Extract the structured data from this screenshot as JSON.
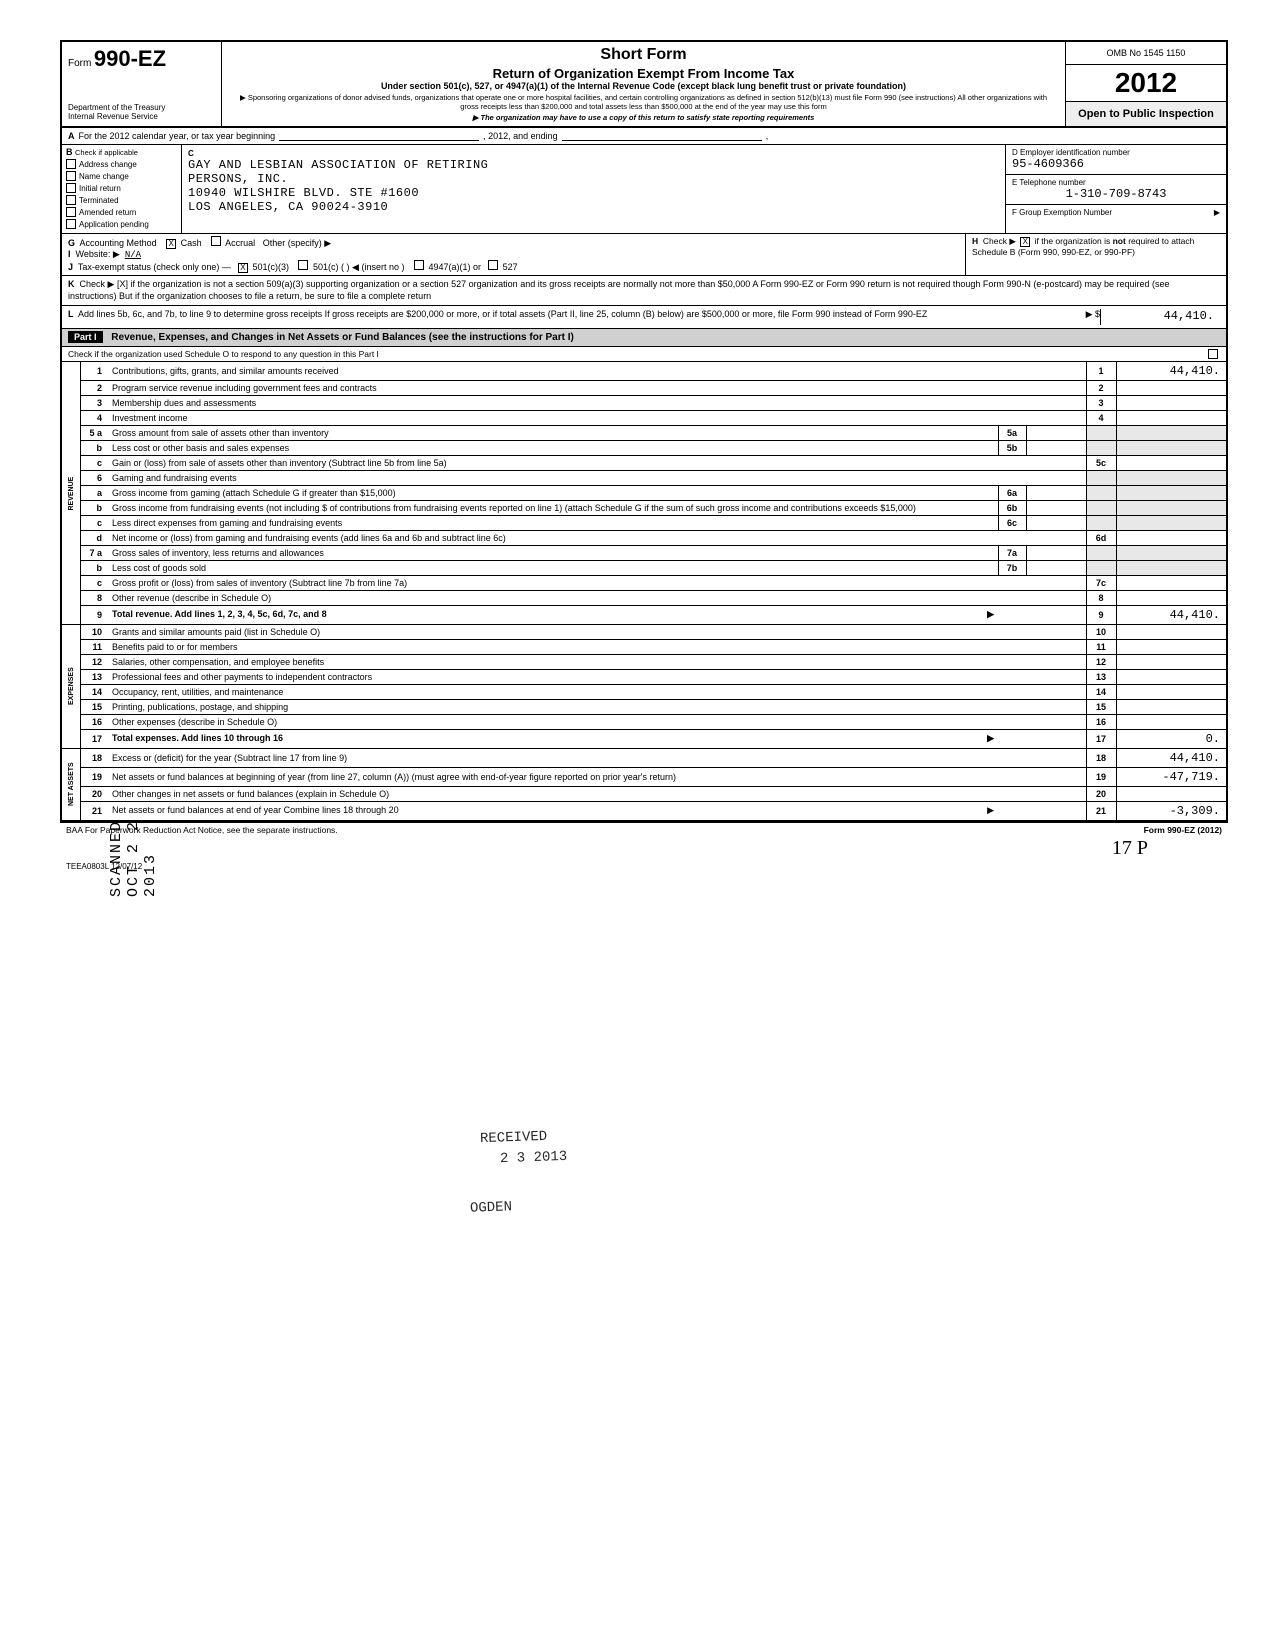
{
  "header": {
    "form_prefix": "Form",
    "form_number": "990-EZ",
    "dept1": "Department of the Treasury",
    "dept2": "Internal Revenue Service",
    "title1": "Short Form",
    "title2": "Return of Organization Exempt From Income Tax",
    "sub": "Under section 501(c), 527, or 4947(a)(1) of the Internal Revenue Code (except black lung benefit trust or private foundation)",
    "small1": "▶ Sponsoring organizations of donor advised funds, organizations that operate one or more hospital facilities, and certain controlling organizations as defined in section 512(b)(13) must file Form 990 (see instructions) All other organizations with gross receipts less than $200,000 and total assets less than $500,000 at the end of the year may use this form",
    "small2": "▶ The organization may have to use a copy of this return to satisfy state reporting requirements",
    "omb": "OMB No 1545 1150",
    "year": "2012",
    "open": "Open to Public Inspection"
  },
  "row_a": {
    "label": "A",
    "text": "For the 2012 calendar year, or tax year beginning",
    "mid": ", 2012, and ending",
    "end": ","
  },
  "block_b": {
    "label": "B",
    "check_label": "Check if applicable",
    "checks": [
      "Address change",
      "Name change",
      "Initial return",
      "Terminated",
      "Amended return",
      "Application pending"
    ],
    "label_c": "C",
    "org_line1": "GAY AND LESBIAN ASSOCIATION OF RETIRING",
    "org_line2": "PERSONS, INC.",
    "addr1": "10940 WILSHIRE BLVD. STE #1600",
    "addr2": "LOS ANGELES, CA 90024-3910",
    "d_label": "D  Employer identification number",
    "d_val": "95-4609366",
    "e_label": "E  Telephone number",
    "e_val": "1-310-709-8743",
    "f_label": "F  Group Exemption Number",
    "f_arrow": "▶"
  },
  "row_g": {
    "g_label": "G",
    "g_text": "Accounting Method",
    "g_cash": "Cash",
    "g_accrual": "Accrual",
    "g_other": "Other (specify) ▶",
    "i_label": "I",
    "i_text": "Website: ▶",
    "i_val": "N/A",
    "j_label": "J",
    "j_text": "Tax-exempt status (check only one) —",
    "j_501c3": "501(c)(3)",
    "j_501c": "501(c) (",
    "j_insert": ")  ◀ (insert no )",
    "j_4947": "4947(a)(1) or",
    "j_527": "527",
    "h_label": "H",
    "h_text1": "Check ▶",
    "h_text2": "if the organization is",
    "h_not": "not",
    "h_text3": "required to attach Schedule B (Form 990, 990-EZ, or 990-PF)"
  },
  "row_k": {
    "label": "K",
    "text": "Check ▶ [X] if the organization is not a section 509(a)(3) supporting organization or a section 527 organization and its gross receipts are normally not more than $50,000  A Form 990-EZ or Form 990 return is not required though Form 990-N (e-postcard) may be required (see instructions)  But if the organization chooses to file a return, be sure to file a complete return"
  },
  "row_l": {
    "label": "L",
    "text": "Add lines 5b, 6c, and 7b, to line 9 to determine gross receipts  If gross receipts are $200,000 or more, or if total assets (Part II, line 25, column (B) below) are $500,000 or more, file Form 990 instead of Form 990-EZ",
    "arrow": "▶ $",
    "amount": "44,410."
  },
  "part1": {
    "part_label": "Part I",
    "title": "Revenue, Expenses, and Changes in Net Assets or Fund Balances (see the instructions for Part I)",
    "sub": "Check if the organization used Schedule O to respond to any question in this Part I"
  },
  "side_labels": {
    "revenue": "REVENUE",
    "expenses": "EXPENSES",
    "netassets": "NET ASSETS"
  },
  "lines": [
    {
      "n": "1",
      "desc": "Contributions, gifts, grants, and similar amounts received",
      "rn": "1",
      "amt": "44,410."
    },
    {
      "n": "2",
      "desc": "Program service revenue including government fees and contracts",
      "rn": "2",
      "amt": ""
    },
    {
      "n": "3",
      "desc": "Membership dues and assessments",
      "rn": "3",
      "amt": ""
    },
    {
      "n": "4",
      "desc": "Investment income",
      "rn": "4",
      "amt": ""
    },
    {
      "n": "5 a",
      "desc": "Gross amount from sale of assets other than inventory",
      "mid": "5a",
      "rn": "",
      "amt": "",
      "shade": true
    },
    {
      "n": "b",
      "desc": "Less cost or other basis and sales expenses",
      "mid": "5b",
      "rn": "",
      "amt": "",
      "shade": true
    },
    {
      "n": "c",
      "desc": "Gain or (loss) from sale of assets other than inventory (Subtract line 5b from line 5a)",
      "rn": "5c",
      "amt": ""
    },
    {
      "n": "6",
      "desc": "Gaming and fundraising events",
      "rn": "",
      "amt": "",
      "shade": true
    },
    {
      "n": "a",
      "desc": "Gross income from gaming (attach Schedule G if greater than $15,000)",
      "mid": "6a",
      "rn": "",
      "amt": "",
      "shade": true
    },
    {
      "n": "b",
      "desc": "Gross income from fundraising events (not including $                    of contributions from fundraising events reported on line 1) (attach Schedule G if the sum of such gross income and contributions exceeds $15,000)",
      "mid": "6b",
      "rn": "",
      "amt": "",
      "shade": true
    },
    {
      "n": "c",
      "desc": "Less  direct expenses from gaming and fundraising events",
      "mid": "6c",
      "rn": "",
      "amt": "",
      "shade": true
    },
    {
      "n": "d",
      "desc": "Net income or (loss) from gaming and fundraising events (add lines 6a and 6b and subtract line 6c)",
      "rn": "6d",
      "amt": ""
    },
    {
      "n": "7 a",
      "desc": "Gross sales of inventory, less returns and allowances",
      "mid": "7a",
      "rn": "",
      "amt": "",
      "shade": true
    },
    {
      "n": "b",
      "desc": "Less cost of goods sold",
      "mid": "7b",
      "rn": "",
      "amt": "",
      "shade": true
    },
    {
      "n": "c",
      "desc": "Gross profit or (loss) from sales of inventory (Subtract line 7b from line 7a)",
      "rn": "7c",
      "amt": ""
    },
    {
      "n": "8",
      "desc": "Other revenue (describe in Schedule O)",
      "rn": "8",
      "amt": ""
    },
    {
      "n": "9",
      "desc": "Total revenue. Add lines 1, 2, 3, 4, 5c, 6d, 7c, and 8",
      "rn": "9",
      "amt": "44,410.",
      "bold": true,
      "arrow": true
    },
    {
      "n": "10",
      "desc": "Grants and similar amounts paid (list in Schedule O)",
      "rn": "10",
      "amt": ""
    },
    {
      "n": "11",
      "desc": "Benefits paid to or for members",
      "rn": "11",
      "amt": ""
    },
    {
      "n": "12",
      "desc": "Salaries, other compensation, and employee benefits",
      "rn": "12",
      "amt": ""
    },
    {
      "n": "13",
      "desc": "Professional fees and other payments to independent contractors",
      "rn": "13",
      "amt": ""
    },
    {
      "n": "14",
      "desc": "Occupancy, rent, utilities, and maintenance",
      "rn": "14",
      "amt": ""
    },
    {
      "n": "15",
      "desc": "Printing, publications, postage, and shipping",
      "rn": "15",
      "amt": ""
    },
    {
      "n": "16",
      "desc": "Other expenses (describe in Schedule O)",
      "rn": "16",
      "amt": ""
    },
    {
      "n": "17",
      "desc": "Total expenses. Add lines 10 through 16",
      "rn": "17",
      "amt": "0.",
      "bold": true,
      "arrow": true
    },
    {
      "n": "18",
      "desc": "Excess or (deficit) for the year (Subtract line 17 from line 9)",
      "rn": "18",
      "amt": "44,410."
    },
    {
      "n": "19",
      "desc": "Net assets or fund balances at beginning of year (from line 27, column (A)) (must agree with end-of-year figure reported on prior year's return)",
      "rn": "19",
      "amt": "-47,719."
    },
    {
      "n": "20",
      "desc": "Other changes in net assets or fund balances (explain in Schedule O)",
      "rn": "20",
      "amt": ""
    },
    {
      "n": "21",
      "desc": "Net assets or fund balances at end of year  Combine lines 18 through 20",
      "rn": "21",
      "amt": "-3,309.",
      "arrow": true
    }
  ],
  "footer": {
    "left": "BAA  For Paperwork Reduction Act Notice, see the separate instructions.",
    "right": "Form 990-EZ (2012)",
    "code": "TEEA0803L  12/07/12"
  },
  "stamps": {
    "received1": "RECEIVED",
    "received2": "2 3 2013",
    "ogden": "OGDEN",
    "vert": "SCANNED  OCT 2 2 2013",
    "hand": "17  P"
  }
}
